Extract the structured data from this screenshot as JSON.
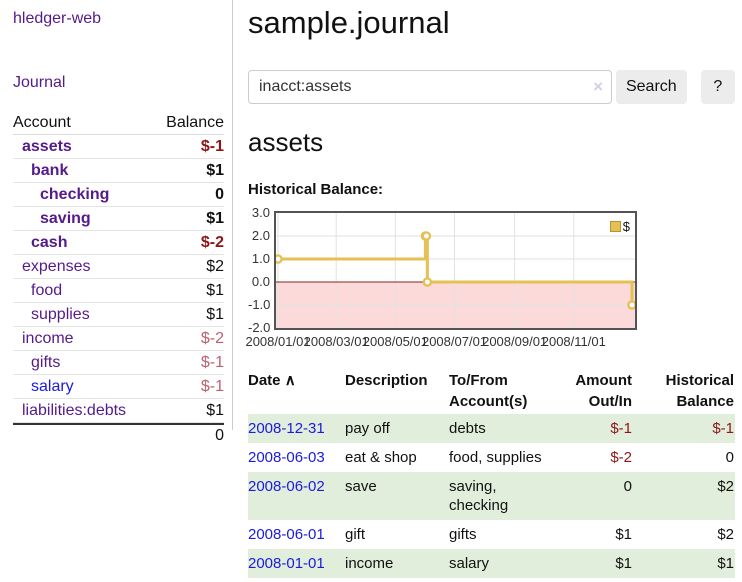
{
  "sidebar": {
    "brand": "hledger-web",
    "journal_link": "Journal",
    "accounts": {
      "headers": {
        "account": "Account",
        "balance": "Balance"
      },
      "rows": [
        {
          "name": "assets",
          "indent": 1,
          "bold": true,
          "balance": "$-1",
          "balance_class": "neg"
        },
        {
          "name": "bank",
          "indent": 2,
          "bold": true,
          "balance": "$1",
          "balance_class": ""
        },
        {
          "name": "checking",
          "indent": 3,
          "bold": true,
          "balance": "0",
          "balance_class": ""
        },
        {
          "name": "saving",
          "indent": 3,
          "bold": true,
          "balance": "$1",
          "balance_class": ""
        },
        {
          "name": "cash",
          "indent": 2,
          "bold": true,
          "balance": "$-2",
          "balance_class": "neg"
        },
        {
          "name": "expenses",
          "indent": 1,
          "bold": false,
          "balance": "$2",
          "balance_class": ""
        },
        {
          "name": "food",
          "indent": 2,
          "bold": false,
          "balance": "$1",
          "balance_class": ""
        },
        {
          "name": "supplies",
          "indent": 2,
          "bold": false,
          "balance": "$1",
          "balance_class": ""
        },
        {
          "name": "income",
          "indent": 1,
          "bold": false,
          "balance": "$-2",
          "balance_class": "soft"
        },
        {
          "name": "gifts",
          "indent": 2,
          "bold": false,
          "balance": "$-1",
          "balance_class": "soft"
        },
        {
          "name": "salary",
          "indent": 2,
          "bold": false,
          "link_color": "blue",
          "balance": "$-1",
          "balance_class": "soft"
        },
        {
          "name": "liabilities:debts",
          "indent": 1,
          "bold": false,
          "balance": "$1",
          "balance_class": ""
        }
      ],
      "total": "0"
    }
  },
  "main": {
    "title": "sample.journal",
    "search": {
      "value": "inacct:assets",
      "clear_icon": "×",
      "search_button": "Search",
      "help_button": "?"
    },
    "account_heading": "assets",
    "chart_label": "Historical Balance:"
  },
  "chart_data": {
    "type": "line",
    "step": true,
    "title": "Historical Balance:",
    "legend": "$",
    "legend_position": "top-right",
    "series": [
      {
        "name": "$",
        "points": [
          {
            "date": "2008-01-01",
            "value": 1
          },
          {
            "date": "2008-06-01",
            "value": 2
          },
          {
            "date": "2008-06-02",
            "value": 2
          },
          {
            "date": "2008-06-03",
            "value": 0
          },
          {
            "date": "2008-12-31",
            "value": -1
          }
        ]
      }
    ],
    "ylim": [
      -2.0,
      3.0
    ],
    "yticks": [
      3.0,
      2.0,
      1.0,
      0.0,
      -1.0,
      -2.0
    ],
    "xticks": [
      "2008/01/01",
      "2008/03/01",
      "2008/05/01",
      "2008/07/01",
      "2008/09/01",
      "2008/11/01"
    ],
    "grid": true,
    "line_color": "#e5c054",
    "negative_region_color": "#fcdada",
    "zero_line_color": "#8b2222"
  },
  "register": {
    "headers": {
      "date": "Date",
      "sort_icon": "∧",
      "description": "Description",
      "accounts": "To/From Account(s)",
      "amount": "Amount Out/In",
      "balance": "Historical Balance"
    },
    "rows": [
      {
        "date": "2008-12-31",
        "description": "pay off",
        "accounts": "debts",
        "amount": "$-1",
        "amount_neg": true,
        "balance": "$-1",
        "balance_neg": true
      },
      {
        "date": "2008-06-03",
        "description": "eat & shop",
        "accounts": "food, supplies",
        "amount": "$-2",
        "amount_neg": true,
        "balance": "0",
        "balance_neg": false
      },
      {
        "date": "2008-06-02",
        "description": "save",
        "accounts": "saving, checking",
        "amount": "0",
        "amount_neg": false,
        "balance": "$2",
        "balance_neg": false
      },
      {
        "date": "2008-06-01",
        "description": "gift",
        "accounts": "gifts",
        "amount": "$1",
        "amount_neg": false,
        "balance": "$2",
        "balance_neg": false
      },
      {
        "date": "2008-01-01",
        "description": "income",
        "accounts": "salary",
        "amount": "$1",
        "amount_neg": false,
        "balance": "$1",
        "balance_neg": false
      }
    ]
  }
}
